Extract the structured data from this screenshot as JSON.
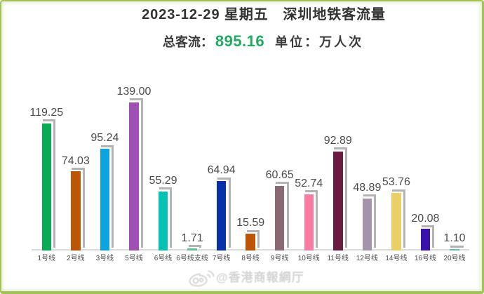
{
  "page": {
    "border_color": "#a2c255",
    "background_color": "#ffffff"
  },
  "header": {
    "title": "2023-12-29 星期五　深圳地铁客流量",
    "total_label": "总客流：",
    "total_value": "895.16",
    "unit_label": "单位：万人次",
    "accent_color": "#22a962"
  },
  "chart_data": {
    "type": "bar",
    "title": "2023-12-29 星期五 深圳地铁客流量",
    "categories": [
      "1号线",
      "2号线",
      "3号线",
      "5号线",
      "6号线",
      "6号线支线",
      "7号线",
      "8号线",
      "9号线",
      "10号线",
      "11号线",
      "12号线",
      "14号线",
      "16号线",
      "20号线"
    ],
    "values": [
      119.25,
      74.03,
      95.24,
      139.0,
      55.29,
      1.71,
      64.94,
      15.59,
      60.65,
      52.74,
      92.89,
      48.89,
      53.76,
      20.08,
      1.1
    ],
    "value_labels": [
      "119.25",
      "74.03",
      "95.24",
      "139.00",
      "55.29",
      "1.71",
      "64.94",
      "15.59",
      "60.65",
      "52.74",
      "92.89",
      "48.89",
      "53.76",
      "20.08",
      "1.10"
    ],
    "colors": [
      "#0aaa56",
      "#bc5504",
      "#0ba4dd",
      "#a04fb2",
      "#06c2b3",
      "#5ec08e",
      "#0831a9",
      "#bb5405",
      "#8a6a72",
      "#f87ba0",
      "#6b1a41",
      "#a394ab",
      "#eace66",
      "#3a11a9",
      "#5bbcb4"
    ],
    "total": 895.16,
    "unit": "万人次",
    "xlabel": "",
    "ylabel": "",
    "ylim": [
      0,
      155
    ],
    "grid": false,
    "legend": false,
    "bar_shadow_color": "#b3b3b3",
    "axis_line_color": "#dcdedf",
    "text_color": "#4b4b4b"
  },
  "watermark": {
    "icon": "weibo-icon",
    "text": "@香港商報網厅",
    "color": "#d4d4d4"
  }
}
